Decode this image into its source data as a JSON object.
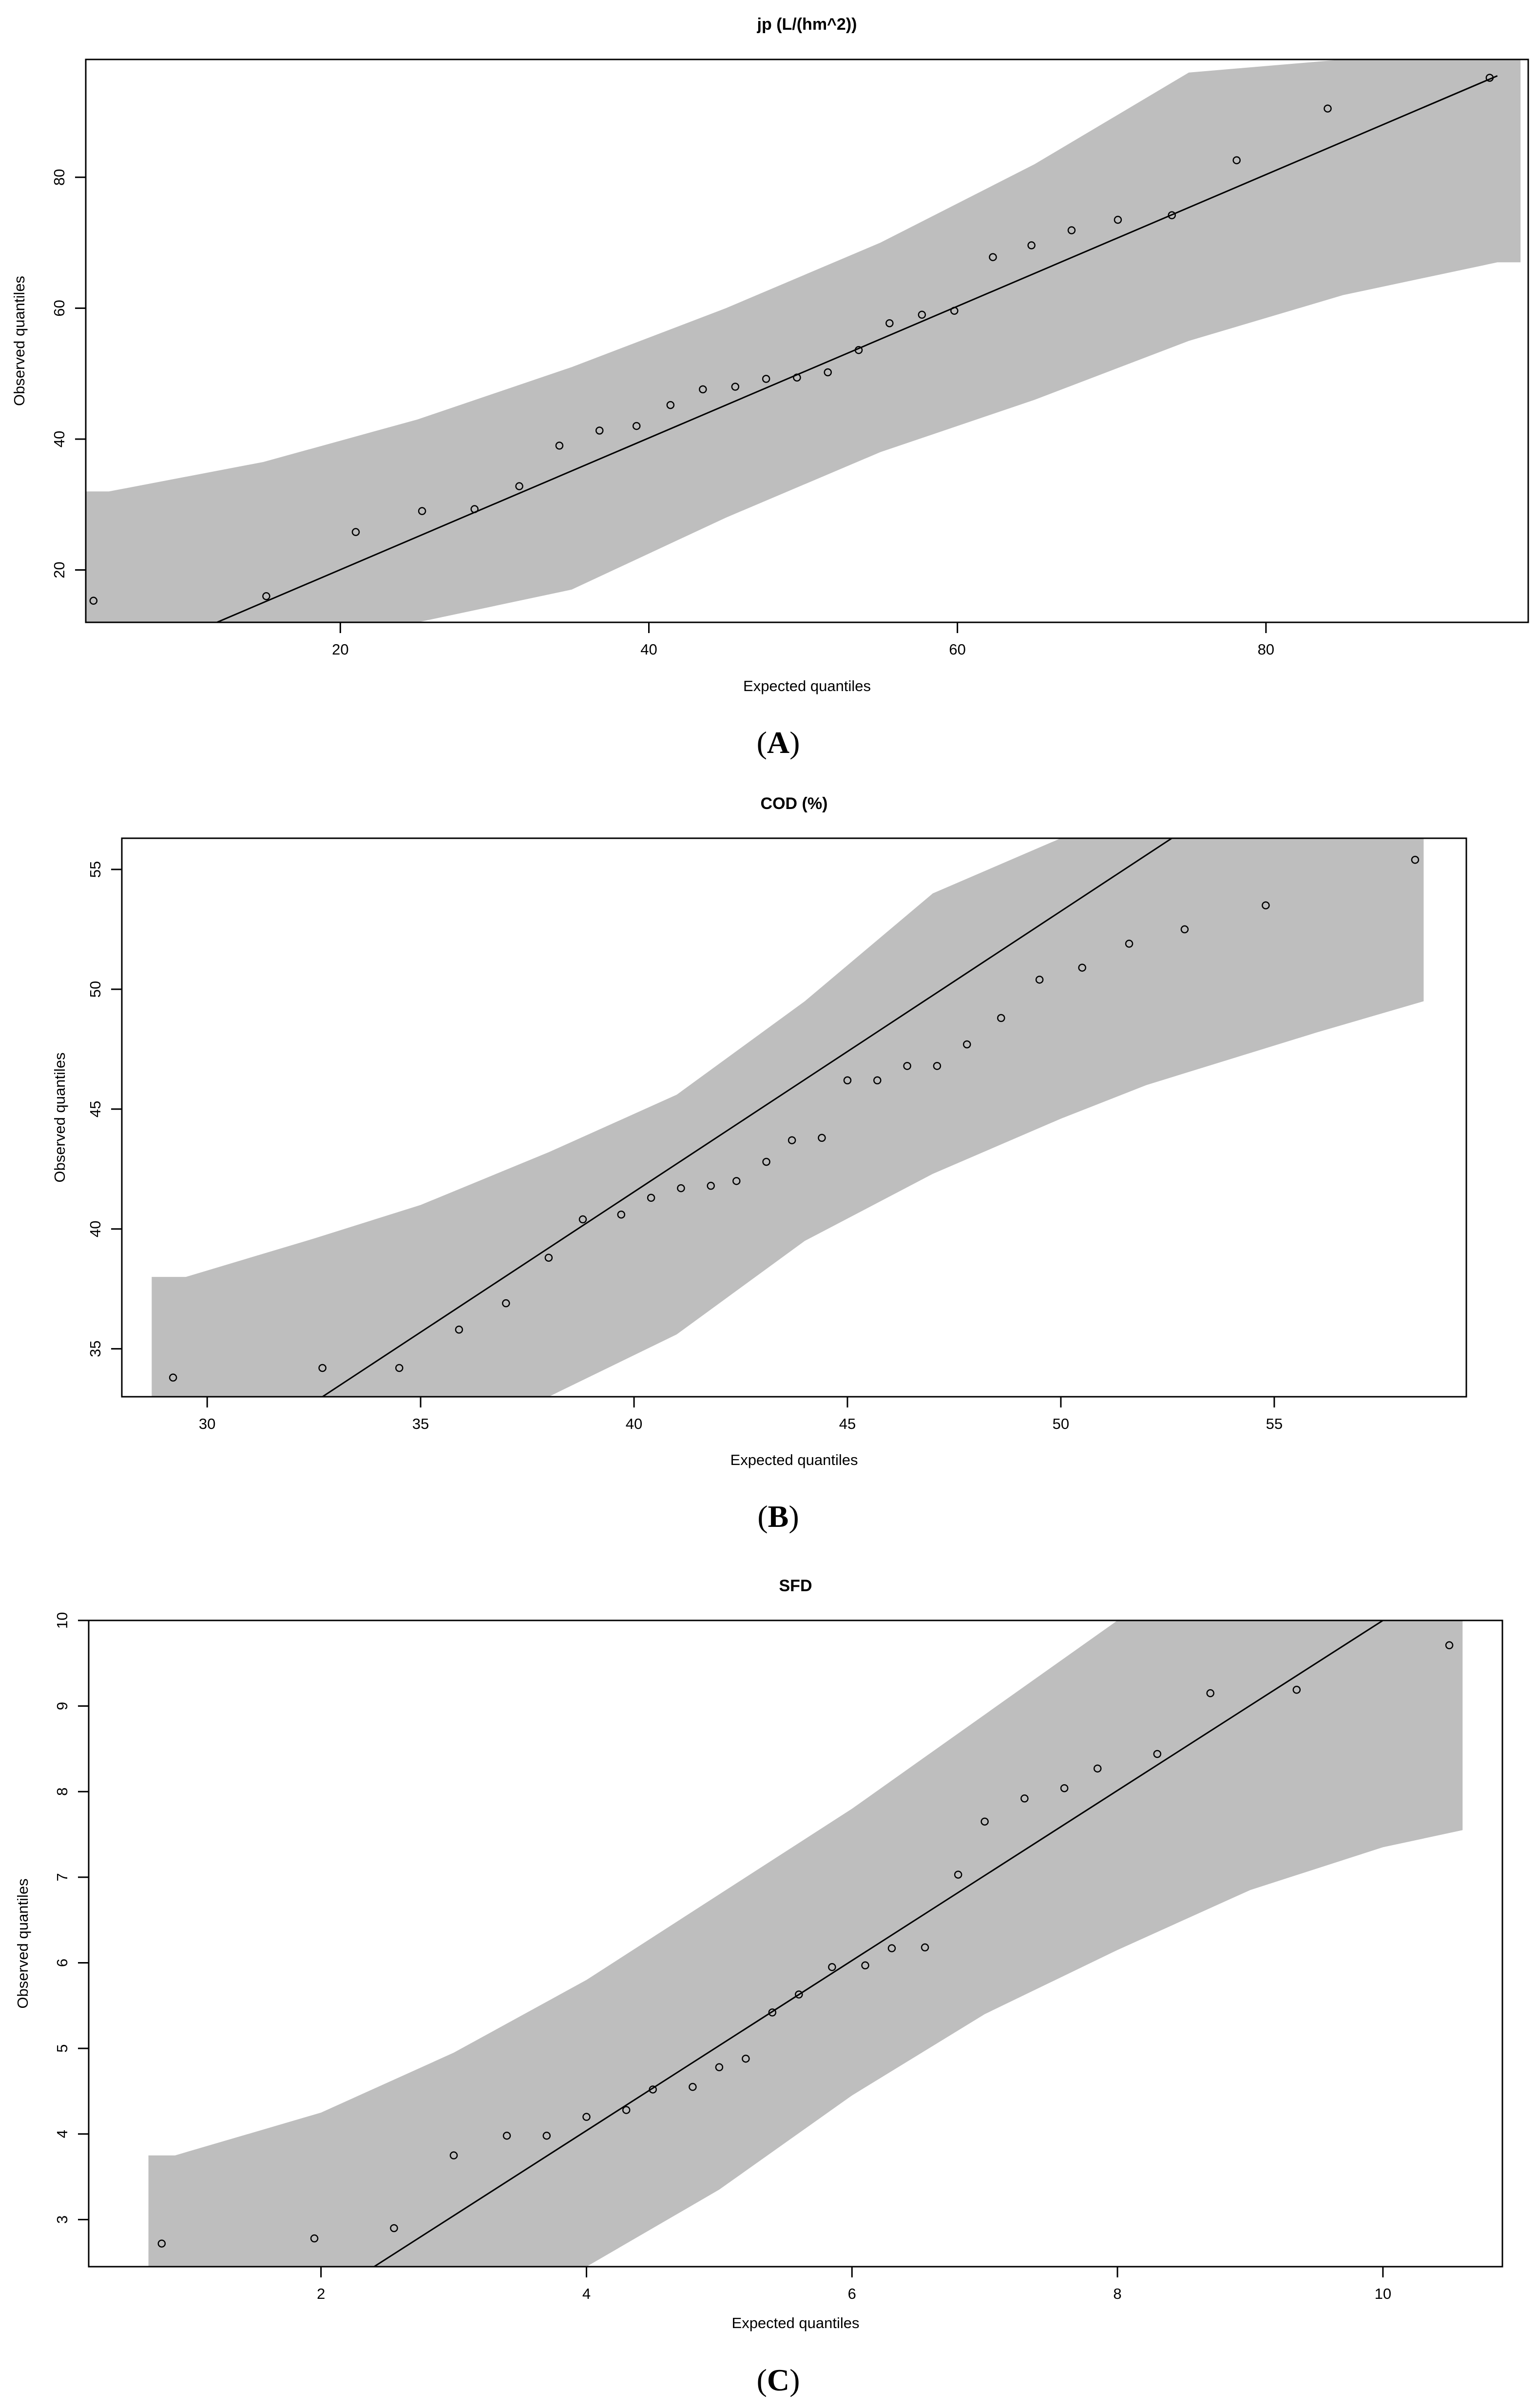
{
  "chart_data": [
    {
      "type": "scatter",
      "panel_label": "A",
      "title": "jp (L/(hm^2))",
      "xlabel": "Expected quantiles",
      "ylabel": "Observed quantiles",
      "xlim": [
        3.5,
        97
      ],
      "ylim": [
        12,
        98
      ],
      "xticks": [
        20,
        40,
        60,
        80
      ],
      "yticks": [
        20,
        40,
        60,
        80
      ],
      "grid": false,
      "points": {
        "x": [
          4.0,
          15.2,
          21.0,
          25.3,
          28.7,
          31.6,
          34.2,
          36.8,
          39.2,
          41.4,
          43.5,
          45.6,
          47.6,
          49.6,
          51.6,
          53.6,
          55.6,
          57.7,
          59.8,
          62.3,
          64.8,
          67.4,
          70.4,
          73.9,
          78.1,
          84.0,
          94.5
        ],
        "y": [
          15.3,
          16.0,
          25.8,
          29.0,
          29.3,
          32.8,
          39.0,
          41.3,
          42.0,
          45.2,
          47.6,
          48.0,
          49.2,
          49.4,
          50.2,
          53.6,
          57.7,
          59.0,
          59.6,
          67.8,
          69.6,
          71.9,
          73.5,
          74.2,
          82.6,
          90.5,
          95.2
        ]
      },
      "reference_line": {
        "x": [
          12,
          95
        ],
        "y": [
          12,
          95.5
        ]
      },
      "confidence_band": {
        "x": [
          3.5,
          5,
          15,
          25,
          35,
          45,
          55,
          65,
          75,
          85,
          95,
          96.5
        ],
        "lower": [
          12,
          12,
          12,
          12,
          17,
          28,
          38,
          46,
          55,
          62,
          67,
          67
        ],
        "upper": [
          32,
          32,
          36.5,
          43,
          51,
          60,
          70,
          82,
          96,
          98,
          98,
          98
        ]
      }
    },
    {
      "type": "scatter",
      "panel_label": "B",
      "title": "COD (%)",
      "xlabel": "Expected quantiles",
      "ylabel": "Observed quantiles",
      "xlim": [
        28,
        59.5
      ],
      "ylim": [
        33,
        56.3
      ],
      "xticks": [
        30,
        35,
        40,
        45,
        50,
        55
      ],
      "yticks": [
        35,
        40,
        45,
        50,
        55
      ],
      "grid": false,
      "points": {
        "x": [
          29.2,
          32.7,
          34.5,
          35.9,
          37.0,
          38.0,
          38.8,
          39.7,
          40.4,
          41.1,
          41.8,
          42.4,
          43.1,
          43.7,
          44.4,
          45.0,
          45.7,
          46.4,
          47.1,
          47.8,
          48.6,
          49.5,
          50.5,
          51.6,
          52.9,
          54.8,
          58.3
        ],
        "y": [
          33.8,
          34.2,
          34.2,
          35.8,
          36.9,
          38.8,
          40.4,
          40.6,
          41.3,
          41.7,
          41.8,
          42.0,
          42.8,
          43.7,
          43.8,
          46.2,
          46.2,
          46.8,
          46.8,
          47.7,
          48.8,
          50.4,
          50.9,
          51.9,
          52.5,
          53.5,
          55.4
        ]
      },
      "reference_line": {
        "x": [
          32.7,
          52.6
        ],
        "y": [
          33,
          56.3
        ]
      },
      "confidence_band": {
        "x": [
          28.7,
          29.5,
          32.5,
          35,
          38,
          41,
          44,
          47,
          50,
          52,
          56,
          58.5
        ],
        "lower": [
          33,
          33,
          33,
          33,
          33,
          35.6,
          39.5,
          42.3,
          44.6,
          46,
          48.2,
          49.5
        ],
        "upper": [
          38,
          38,
          39.6,
          41,
          43.2,
          45.6,
          49.5,
          54,
          56.3,
          56.3,
          56.3,
          56.3
        ]
      }
    },
    {
      "type": "scatter",
      "panel_label": "C",
      "title": "SFD",
      "xlabel": "Expected quantiles",
      "ylabel": "Observed quantiles",
      "xlim": [
        0.25,
        10.9
      ],
      "ylim": [
        2.45,
        10
      ],
      "xticks": [
        2,
        4,
        6,
        8,
        10
      ],
      "yticks": [
        3,
        4,
        5,
        6,
        7,
        8,
        9,
        10
      ],
      "grid": false,
      "points": {
        "x": [
          0.8,
          1.95,
          2.55,
          3.0,
          3.4,
          3.7,
          4.0,
          4.3,
          4.5,
          4.8,
          5.0,
          5.2,
          5.4,
          5.6,
          5.85,
          6.1,
          6.3,
          6.55,
          6.8,
          7.0,
          7.3,
          7.6,
          7.85,
          8.3,
          8.7,
          9.35,
          10.5
        ],
        "y": [
          2.72,
          2.78,
          2.9,
          3.75,
          3.98,
          3.98,
          4.2,
          4.28,
          4.52,
          4.55,
          4.78,
          4.88,
          5.42,
          5.63,
          5.95,
          5.97,
          6.17,
          6.18,
          7.03,
          7.65,
          7.92,
          8.04,
          8.27,
          8.44,
          9.15,
          9.19,
          9.71
        ]
      },
      "reference_line": {
        "x": [
          2.4,
          10.0
        ],
        "y": [
          2.45,
          10.0
        ]
      },
      "confidence_band": {
        "x": [
          0.7,
          0.9,
          2.0,
          3.0,
          4.0,
          5.0,
          6.0,
          7.0,
          8.0,
          9.0,
          10.0,
          10.6
        ],
        "lower": [
          2.45,
          2.45,
          2.45,
          2.45,
          2.45,
          3.35,
          4.45,
          5.4,
          6.15,
          6.85,
          7.35,
          7.55
        ],
        "upper": [
          3.75,
          3.75,
          4.25,
          4.95,
          5.8,
          6.8,
          7.8,
          8.9,
          10.0,
          10.0,
          10.0,
          10.0
        ]
      }
    }
  ],
  "colors": {
    "band": "#bebebe",
    "line": "#000000",
    "frame": "#000000",
    "background": "#ffffff"
  }
}
